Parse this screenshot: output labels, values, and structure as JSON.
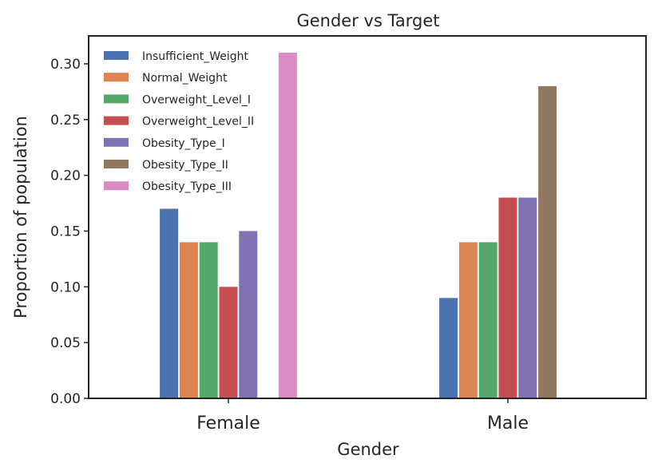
{
  "chart_data": {
    "type": "bar",
    "title": "Gender vs Target",
    "xlabel": "Gender",
    "ylabel": "Proportion of population",
    "categories": [
      "Female",
      "Male"
    ],
    "ylim": [
      0,
      0.325
    ],
    "yticks": [
      "0.00",
      "0.05",
      "0.10",
      "0.15",
      "0.20",
      "0.25",
      "0.30"
    ],
    "ytick_values": [
      0,
      0.05,
      0.1,
      0.15,
      0.2,
      0.25,
      0.3
    ],
    "grid": false,
    "legend_position": "top-left",
    "series": [
      {
        "name": "Insufficient_Weight",
        "color": "#4C72B0",
        "values": [
          0.17,
          0.09
        ]
      },
      {
        "name": "Normal_Weight",
        "color": "#DD8452",
        "values": [
          0.14,
          0.14
        ]
      },
      {
        "name": "Overweight_Level_I",
        "color": "#55A868",
        "values": [
          0.14,
          0.14
        ]
      },
      {
        "name": "Overweight_Level_II",
        "color": "#C44E52",
        "values": [
          0.1,
          0.18
        ]
      },
      {
        "name": "Obesity_Type_I",
        "color": "#8172B3",
        "values": [
          0.15,
          0.18
        ]
      },
      {
        "name": "Obesity_Type_II",
        "color": "#937860",
        "values": [
          0,
          0.28
        ]
      },
      {
        "name": "Obesity_Type_III",
        "color": "#DA8BC3",
        "values": [
          0.31,
          0
        ]
      }
    ]
  }
}
